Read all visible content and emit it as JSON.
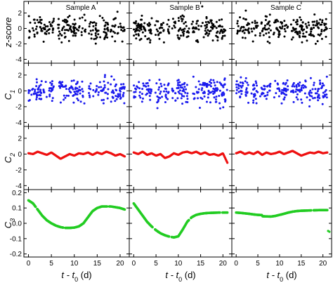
{
  "chart_data": {
    "type": "scatter",
    "layout": "4 rows x 3 columns small multiples, shared axes",
    "xlim": [
      -1,
      22
    ],
    "xticks": [
      0,
      5,
      10,
      15,
      20
    ],
    "xlabel": {
      "pre": "t - t",
      "sub": "0",
      "post": " (d)"
    },
    "columns": [
      {
        "title": "Sample A"
      },
      {
        "title": "Sample B"
      },
      {
        "title": "Sample C"
      }
    ],
    "rows": [
      {
        "id": "zscore",
        "ylabel": "z-score",
        "ylabel_sub": "",
        "ylim": [
          -4.5,
          3.5
        ],
        "yticks": [
          -4,
          -2,
          0,
          2
        ],
        "tick_labels": [
          "-4",
          "-2",
          "0",
          "2"
        ],
        "color": "#000000"
      },
      {
        "id": "c1",
        "ylabel": "C",
        "ylabel_sub": "1",
        "ylim": [
          -4.5,
          3.5
        ],
        "yticks": [
          -4,
          -2,
          0,
          2
        ],
        "tick_labels": [
          "-4",
          "-2",
          "0",
          "2"
        ],
        "color": "#1a1aee"
      },
      {
        "id": "c2",
        "ylabel": "C",
        "ylabel_sub": "2",
        "ylim": [
          -4.5,
          3.5
        ],
        "yticks": [
          -4,
          -2,
          0,
          2
        ],
        "tick_labels": [
          "-4",
          "-2",
          "0",
          "2"
        ],
        "color": "#ee1111"
      },
      {
        "id": "c3",
        "ylabel": "C",
        "ylabel_sub": "3",
        "ylim": [
          -0.22,
          0.22
        ],
        "yticks": [
          -0.2,
          -0.1,
          0.0,
          0.1,
          0.2
        ],
        "tick_labels": [
          "-0.2",
          "-0.1",
          "0.0",
          "0.1",
          "0.2"
        ],
        "color": "#22cc22"
      }
    ],
    "panels": {
      "zscore": {
        "A": {
          "noise_sd": 0.75,
          "gaps": [
            [
              5.6,
              6.4
            ],
            [
              12.5,
              13.2
            ],
            [
              17.4,
              17.9
            ]
          ]
        },
        "B": {
          "noise_sd": 0.75,
          "gaps": [
            [
              4.3,
              4.8
            ],
            [
              8.0,
              8.5
            ],
            [
              12.4,
              13.0
            ]
          ]
        },
        "C": {
          "noise_sd": 0.75,
          "gaps": [
            [
              3.0,
              3.5
            ],
            [
              5.0,
              5.5
            ],
            [
              8.0,
              8.5
            ],
            [
              12.0,
              12.6
            ]
          ]
        }
      },
      "c1": {
        "A": {
          "noise_sd": 0.75,
          "gaps": [
            [
              5.6,
              6.4
            ],
            [
              12.5,
              13.2
            ],
            [
              17.4,
              17.9
            ]
          ]
        },
        "B": {
          "noise_sd": 0.75,
          "gaps": [
            [
              4.3,
              4.8
            ],
            [
              8.0,
              8.5
            ],
            [
              12.4,
              13.0
            ]
          ]
        },
        "C": {
          "noise_sd": 0.75,
          "gaps": [
            [
              3.0,
              3.5
            ],
            [
              5.0,
              5.5
            ],
            [
              8.0,
              8.5
            ],
            [
              12.0,
              12.6
            ]
          ]
        }
      },
      "c2": {
        "A": {
          "curve": [
            [
              0,
              0.1
            ],
            [
              1,
              0.0
            ],
            [
              2,
              0.3
            ],
            [
              3,
              0.1
            ],
            [
              4,
              -0.1
            ],
            [
              5,
              0.2
            ],
            [
              6,
              -0.2
            ],
            [
              7,
              -0.6
            ],
            [
              8,
              -0.3
            ],
            [
              9,
              0.0
            ],
            [
              10,
              -0.2
            ],
            [
              11,
              0.1
            ],
            [
              12,
              0.0
            ],
            [
              13,
              0.2
            ],
            [
              14,
              -0.1
            ],
            [
              15,
              0.2
            ],
            [
              16,
              0.0
            ],
            [
              17,
              0.3
            ],
            [
              18,
              0.1
            ],
            [
              19,
              -0.2
            ],
            [
              20,
              0.0
            ],
            [
              21,
              -0.3
            ]
          ]
        },
        "B": {
          "curve": [
            [
              0,
              0.2
            ],
            [
              1,
              0.0
            ],
            [
              2,
              0.3
            ],
            [
              3,
              -0.1
            ],
            [
              4,
              0.1
            ],
            [
              5,
              -0.2
            ],
            [
              6,
              0.0
            ],
            [
              7,
              -0.5
            ],
            [
              8,
              -0.3
            ],
            [
              9,
              0.1
            ],
            [
              10,
              -0.1
            ],
            [
              11,
              0.2
            ],
            [
              12,
              0.3
            ],
            [
              13,
              0.1
            ],
            [
              14,
              0.3
            ],
            [
              15,
              0.0
            ],
            [
              16,
              0.2
            ],
            [
              17,
              -0.1
            ],
            [
              18,
              0.0
            ],
            [
              19,
              -0.2
            ],
            [
              20,
              0.1
            ],
            [
              21,
              -1.1
            ]
          ]
        },
        "C": {
          "curve": [
            [
              0,
              0.1
            ],
            [
              1,
              0.3
            ],
            [
              2,
              0.0
            ],
            [
              3,
              0.2
            ],
            [
              4,
              0.0
            ],
            [
              5,
              0.3
            ],
            [
              6,
              -0.1
            ],
            [
              7,
              0.2
            ],
            [
              8,
              0.0
            ],
            [
              9,
              0.1
            ],
            [
              10,
              0.3
            ],
            [
              11,
              0.0
            ],
            [
              12,
              0.2
            ],
            [
              13,
              0.4
            ],
            [
              14,
              0.1
            ],
            [
              15,
              -0.2
            ],
            [
              16,
              0.0
            ],
            [
              17,
              0.2
            ],
            [
              18,
              0.1
            ],
            [
              19,
              0.3
            ],
            [
              20,
              0.1
            ],
            [
              21,
              0.2
            ]
          ]
        }
      },
      "c3": {
        "A": {
          "curve": [
            [
              0,
              0.15
            ],
            [
              1,
              0.13
            ],
            [
              2,
              0.09
            ],
            [
              3,
              0.05
            ],
            [
              4,
              0.02
            ],
            [
              5,
              0.0
            ],
            [
              6,
              -0.015
            ],
            [
              7,
              -0.025
            ],
            [
              8,
              -0.03
            ],
            [
              9,
              -0.03
            ],
            [
              10,
              -0.028
            ],
            [
              11,
              -0.02
            ],
            [
              12,
              0.0
            ],
            [
              13,
              0.04
            ],
            [
              14,
              0.08
            ],
            [
              15,
              0.1
            ],
            [
              16,
              0.11
            ],
            [
              17,
              0.11
            ],
            [
              18,
              0.11
            ],
            [
              19,
              0.105
            ],
            [
              20,
              0.1
            ],
            [
              21,
              0.09
            ]
          ],
          "gaps": [
            [
              1.6,
              1.9
            ],
            [
              7.6,
              8.0
            ],
            [
              17.2,
              17.6
            ]
          ]
        },
        "B": {
          "curve": [
            [
              0,
              0.13
            ],
            [
              1,
              0.09
            ],
            [
              2,
              0.05
            ],
            [
              3,
              0.01
            ],
            [
              4,
              -0.02
            ],
            [
              5,
              -0.045
            ],
            [
              6,
              -0.065
            ],
            [
              7,
              -0.078
            ],
            [
              8,
              -0.087
            ],
            [
              9,
              -0.092
            ],
            [
              10,
              -0.085
            ],
            [
              11,
              -0.04
            ],
            [
              12,
              0.01
            ],
            [
              13,
              0.04
            ],
            [
              14,
              0.055
            ],
            [
              15,
              0.062
            ],
            [
              16,
              0.066
            ],
            [
              17,
              0.068
            ],
            [
              18,
              0.069
            ],
            [
              19,
              0.07
            ],
            [
              20,
              0.07
            ],
            [
              21,
              0.07
            ]
          ],
          "gaps": [
            [
              4.3,
              4.7
            ],
            [
              8.0,
              8.5
            ],
            [
              12.4,
              12.8
            ],
            [
              19.4,
              19.8
            ]
          ]
        },
        "C": {
          "curve": [
            [
              0,
              0.07
            ],
            [
              1,
              0.068
            ],
            [
              2,
              0.065
            ],
            [
              3,
              0.062
            ],
            [
              4,
              0.058
            ],
            [
              5,
              0.055
            ],
            [
              5.9,
              0.054
            ],
            [
              6.1,
              0.046
            ],
            [
              7,
              0.045
            ],
            [
              8,
              0.044
            ],
            [
              9,
              0.048
            ],
            [
              10,
              0.055
            ],
            [
              11,
              0.062
            ],
            [
              12,
              0.07
            ],
            [
              13,
              0.076
            ],
            [
              14,
              0.08
            ],
            [
              15,
              0.082
            ],
            [
              16,
              0.083
            ],
            [
              17,
              0.084
            ],
            [
              18,
              0.085
            ],
            [
              19,
              0.086
            ],
            [
              20,
              0.086
            ],
            [
              21,
              0.086
            ]
          ],
          "gaps": [
            [
              17.3,
              17.8
            ],
            [
              21.2,
              22
            ]
          ],
          "extra_points": [
            [
              21.2,
              -0.05
            ],
            [
              21.5,
              -0.055
            ]
          ]
        }
      }
    }
  }
}
